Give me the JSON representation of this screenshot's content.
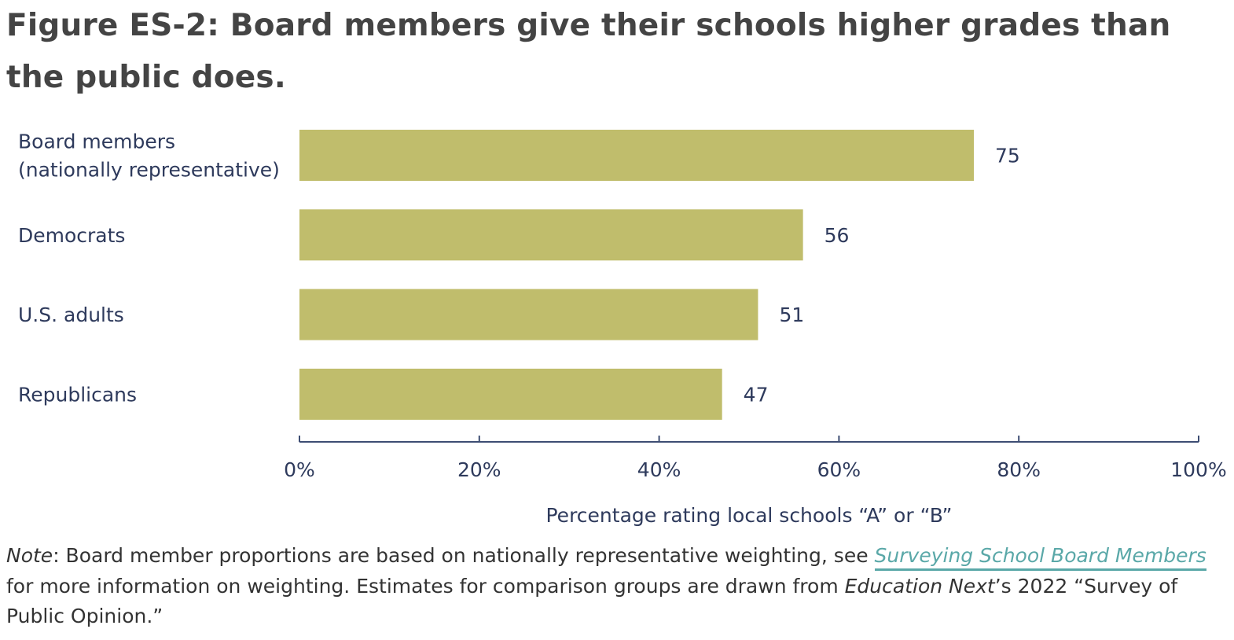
{
  "title": "Figure ES-2: Board members give their schools higher grades than the public does.",
  "chart_data": {
    "type": "bar",
    "orientation": "horizontal",
    "categories": [
      [
        "Board members",
        "(nationally representative)"
      ],
      [
        "Democrats"
      ],
      [
        "U.S. adults"
      ],
      [
        "Republicans"
      ]
    ],
    "values": [
      75,
      56,
      51,
      47
    ],
    "value_labels": [
      "75",
      "56",
      "51",
      "47"
    ],
    "xlabel": "Percentage rating local schools “A” or “B”",
    "xlim": [
      0,
      100
    ],
    "xticks": [
      "0%",
      "20%",
      "40%",
      "60%",
      "80%",
      "100%"
    ],
    "grid": false,
    "legend": "none",
    "bar_color": "#c0bd6c",
    "axis_color": "#3d4d73",
    "text_color": "#2e3a5c"
  },
  "note": {
    "label": "Note",
    "text_1": ": Board member proportions are based on nationally representative weighting, see ",
    "link_text": "Surveying School Board Members",
    "text_2": " for more information on weighting. Estimates for comparison groups are drawn from ",
    "source_name": "Education Next",
    "text_3": "’s 2022 “Survey of Public Opinion.”"
  }
}
